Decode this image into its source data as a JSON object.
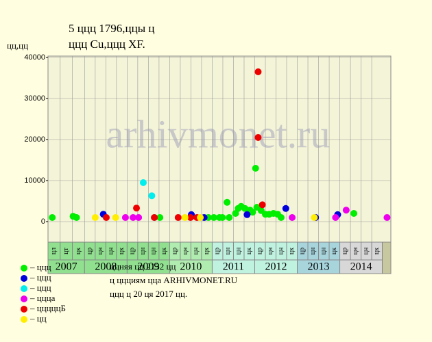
{
  "chart_data": {
    "type": "scatter",
    "title": "5 ццц 1796,ццы ц",
    "subtitle": "ццц Cu,ццц XF.",
    "ylabel": "цц,цц",
    "watermark": "arhivmonet.ru",
    "xlim": [
      2007.14,
      2015.2
    ],
    "ylim": [
      -5000,
      40000
    ],
    "yticks": [
      0,
      10000,
      20000,
      30000,
      40000
    ],
    "grid": true,
    "years": [
      "2007",
      "2008",
      "2009",
      "2010",
      "2011",
      "2012",
      "2013",
      "2014"
    ],
    "year_bounds": [
      2008,
      2009,
      2010,
      2011,
      2012,
      2013,
      2014,
      2015
    ],
    "year_colors": [
      "#90e090",
      "#90e090",
      "#90e090",
      "#b0ecb0",
      "#c0f2e0",
      "#c0f2e0",
      "#a8d4dc",
      "#d8d8d8"
    ],
    "periods": [
      [
        "цл",
        "цт",
        "цк"
      ],
      [
        "цр",
        "цн",
        "цн",
        "цк"
      ],
      [
        "цр",
        "цн",
        "цн",
        "цк"
      ],
      [
        "цр",
        "цн",
        "цн",
        "цк"
      ],
      [
        "цр",
        "цн",
        "цн",
        "цк"
      ],
      [
        "цр",
        "цн",
        "цн",
        "цк"
      ],
      [
        "цр",
        "цн",
        "цн",
        "цк"
      ],
      [
        "цр",
        "цн",
        "цн",
        "цк"
      ]
    ],
    "series": [
      {
        "name": "– ццц",
        "color": "#00ee00",
        "x": [
          2007.24,
          2007.73,
          2007.81,
          2009.77,
          2010.91,
          2011.04,
          2011.17,
          2011.24,
          2011.35,
          2011.4,
          2011.55,
          2011.61,
          2011.68,
          2011.77,
          2011.89,
          2011.95,
          2012.02,
          2012.05,
          2012.15,
          2012.25,
          2012.34,
          2012.44,
          2012.54,
          2012.62,
          2014.33
        ],
        "values": [
          1000,
          1300,
          1000,
          1000,
          1000,
          1000,
          1000,
          1000,
          4700,
          1000,
          2000,
          3200,
          3700,
          3200,
          2800,
          2300,
          13000,
          3500,
          2700,
          1800,
          1800,
          2000,
          1800,
          1000,
          2000
        ]
      },
      {
        "name": "– ццц",
        "color": "#0000dd",
        "x": [
          2008.44,
          2010.51,
          2010.81,
          2011.82,
          2012.73,
          2013.43,
          2013.95
        ],
        "values": [
          1800,
          1700,
          1000,
          1700,
          3200,
          1000,
          1700
        ]
      },
      {
        "name": "– ццц",
        "color": "#00eeee",
        "x": [
          2009.38,
          2009.58,
          2009.64
        ],
        "values": [
          9500,
          6300,
          1000
        ]
      },
      {
        "name": "– ццца",
        "color": "#ee00ee",
        "x": [
          2008.96,
          2009.14,
          2009.27,
          2012.88,
          2013.9,
          2014.15,
          2015.11
        ],
        "values": [
          1000,
          1000,
          1000,
          1000,
          1000,
          2800,
          1000
        ]
      },
      {
        "name": "– цццццБ",
        "color": "#ee0000",
        "x": [
          2008.51,
          2009.22,
          2009.64,
          2010.2,
          2010.49,
          2010.64,
          2012.08,
          2012.08,
          2012.18
        ],
        "values": [
          1000,
          3300,
          1000,
          1000,
          1000,
          1000,
          20500,
          36500,
          4100
        ]
      },
      {
        "name": "– цц",
        "color": "#ffee00",
        "x": [
          2008.25,
          2008.73,
          2010.36,
          2010.72,
          2013.4
        ],
        "values": [
          1000,
          1000,
          1000,
          1000,
          1000
        ]
      }
    ],
    "notes": [
      "ццняя цц 2132 цц",
      "ц ццциям цца ARHIVMONET.RU",
      "ццц ц 20 ця 2017 цц."
    ]
  }
}
